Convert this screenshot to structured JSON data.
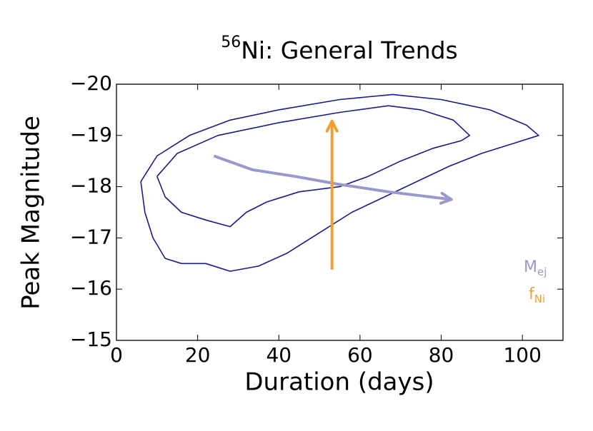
{
  "chart_data": {
    "type": "line",
    "title_superscript": "56",
    "title": "Ni: General Trends",
    "xlabel": "Duration (days)",
    "ylabel": "Peak Magnitude",
    "xlim": [
      0,
      110
    ],
    "xticks": [
      0,
      20,
      40,
      60,
      80,
      100
    ],
    "ylim": [
      -15,
      -20
    ],
    "yticks": [
      {
        "value": -20,
        "label": "−20"
      },
      {
        "value": -19,
        "label": "−19"
      },
      {
        "value": -18,
        "label": "−18"
      },
      {
        "value": -17,
        "label": "−17"
      },
      {
        "value": -16,
        "label": "−16"
      },
      {
        "value": -15,
        "label": "−15"
      }
    ],
    "series": [
      {
        "color": "#1a1a8c",
        "x": [
          6,
          7,
          9,
          12,
          16,
          22,
          28,
          35,
          42,
          50,
          58,
          66,
          74,
          82,
          90,
          98,
          104,
          101,
          92,
          80,
          68,
          55,
          40,
          28,
          18,
          10,
          6
        ],
        "values": [
          -18.1,
          -17.5,
          -17.0,
          -16.6,
          -16.5,
          -16.5,
          -16.35,
          -16.45,
          -16.7,
          -17.1,
          -17.5,
          -17.8,
          -18.1,
          -18.4,
          -18.65,
          -18.85,
          -19.0,
          -19.2,
          -19.5,
          -19.7,
          -19.8,
          -19.7,
          -19.5,
          -19.3,
          -19.0,
          -18.6,
          -18.1
        ]
      },
      {
        "color": "#1a1a8c",
        "x": [
          10,
          12,
          16,
          22,
          28,
          32,
          37,
          45,
          55,
          62,
          70,
          78,
          85,
          87,
          83,
          75,
          67,
          55,
          40,
          25,
          15,
          10
        ],
        "values": [
          -18.2,
          -17.8,
          -17.5,
          -17.35,
          -17.22,
          -17.5,
          -17.7,
          -17.9,
          -18.0,
          -18.2,
          -18.5,
          -18.75,
          -18.9,
          -19.0,
          -19.3,
          -19.5,
          -19.58,
          -19.45,
          -19.25,
          -19.0,
          -18.65,
          -18.2
        ]
      },
      {
        "name": "M",
        "name_sub": "ej",
        "color": "#9999cc",
        "arrow": true,
        "x": [
          24,
          33.5,
          44,
          54.5,
          67,
          82.5
        ],
        "values": [
          -18.6,
          -18.33,
          -18.2,
          -18.05,
          -17.9,
          -17.75
        ]
      },
      {
        "name": "f",
        "name_sub": "Ni",
        "color": "#f0a030",
        "arrow": true,
        "x": [
          53.1,
          53.1
        ],
        "values": [
          -16.38,
          -19.28
        ]
      }
    ]
  }
}
